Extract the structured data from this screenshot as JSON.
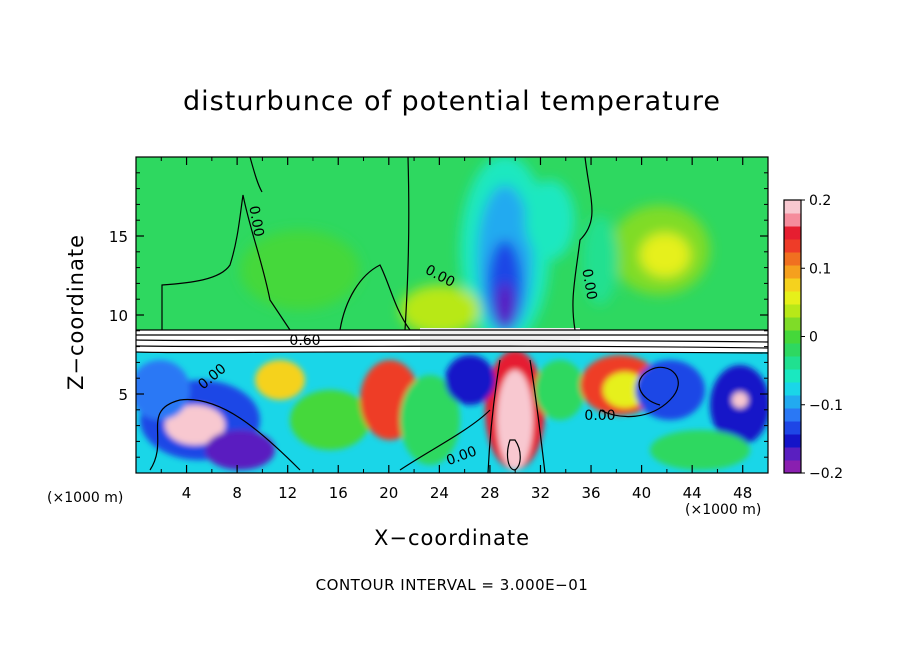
{
  "chart_data": {
    "type": "heatmap",
    "title": "disturbunce of potential temperature",
    "xlabel": "X−coordinate",
    "ylabel": "Z−coordinate",
    "xlim": [
      0,
      50
    ],
    "ylim": [
      0,
      20
    ],
    "x_ticks": [
      "4",
      "8",
      "12",
      "16",
      "20",
      "24",
      "28",
      "32",
      "36",
      "40",
      "44",
      "48"
    ],
    "x_tick_values": [
      4,
      8,
      12,
      16,
      20,
      24,
      28,
      32,
      36,
      40,
      44,
      48
    ],
    "y_ticks": [
      "5",
      "10",
      "15"
    ],
    "y_tick_values": [
      5,
      10,
      15
    ],
    "x_unit": "(×1000 m)",
    "z_unit": "(×1000 m)",
    "colorbar": {
      "range": [
        -0.2,
        0.2
      ],
      "tick_labels": [
        "0.2",
        "0.1",
        "0",
        "−0.1",
        "−0.2"
      ],
      "tick_values": [
        0.2,
        0.1,
        0,
        -0.1,
        -0.2
      ],
      "colors": [
        "#8a1fb0",
        "#5a1fc0",
        "#1414c8",
        "#1e46e6",
        "#2a78f5",
        "#22aaf0",
        "#1ad6e8",
        "#1ae8c0",
        "#20e090",
        "#2ed860",
        "#45d83a",
        "#7fdc28",
        "#b8e818",
        "#e6f01a",
        "#f5d21e",
        "#f5a01e",
        "#f07020",
        "#ee3c28",
        "#e61e30",
        "#f58c9c",
        "#f8c8d0"
      ]
    },
    "contour_labels": [
      "0.00",
      "0.00",
      "0.00",
      "0.60",
      "0.00",
      "0.00",
      "0.00"
    ],
    "annotation": "CONTOUR INTERVAL = 3.000E−01"
  }
}
